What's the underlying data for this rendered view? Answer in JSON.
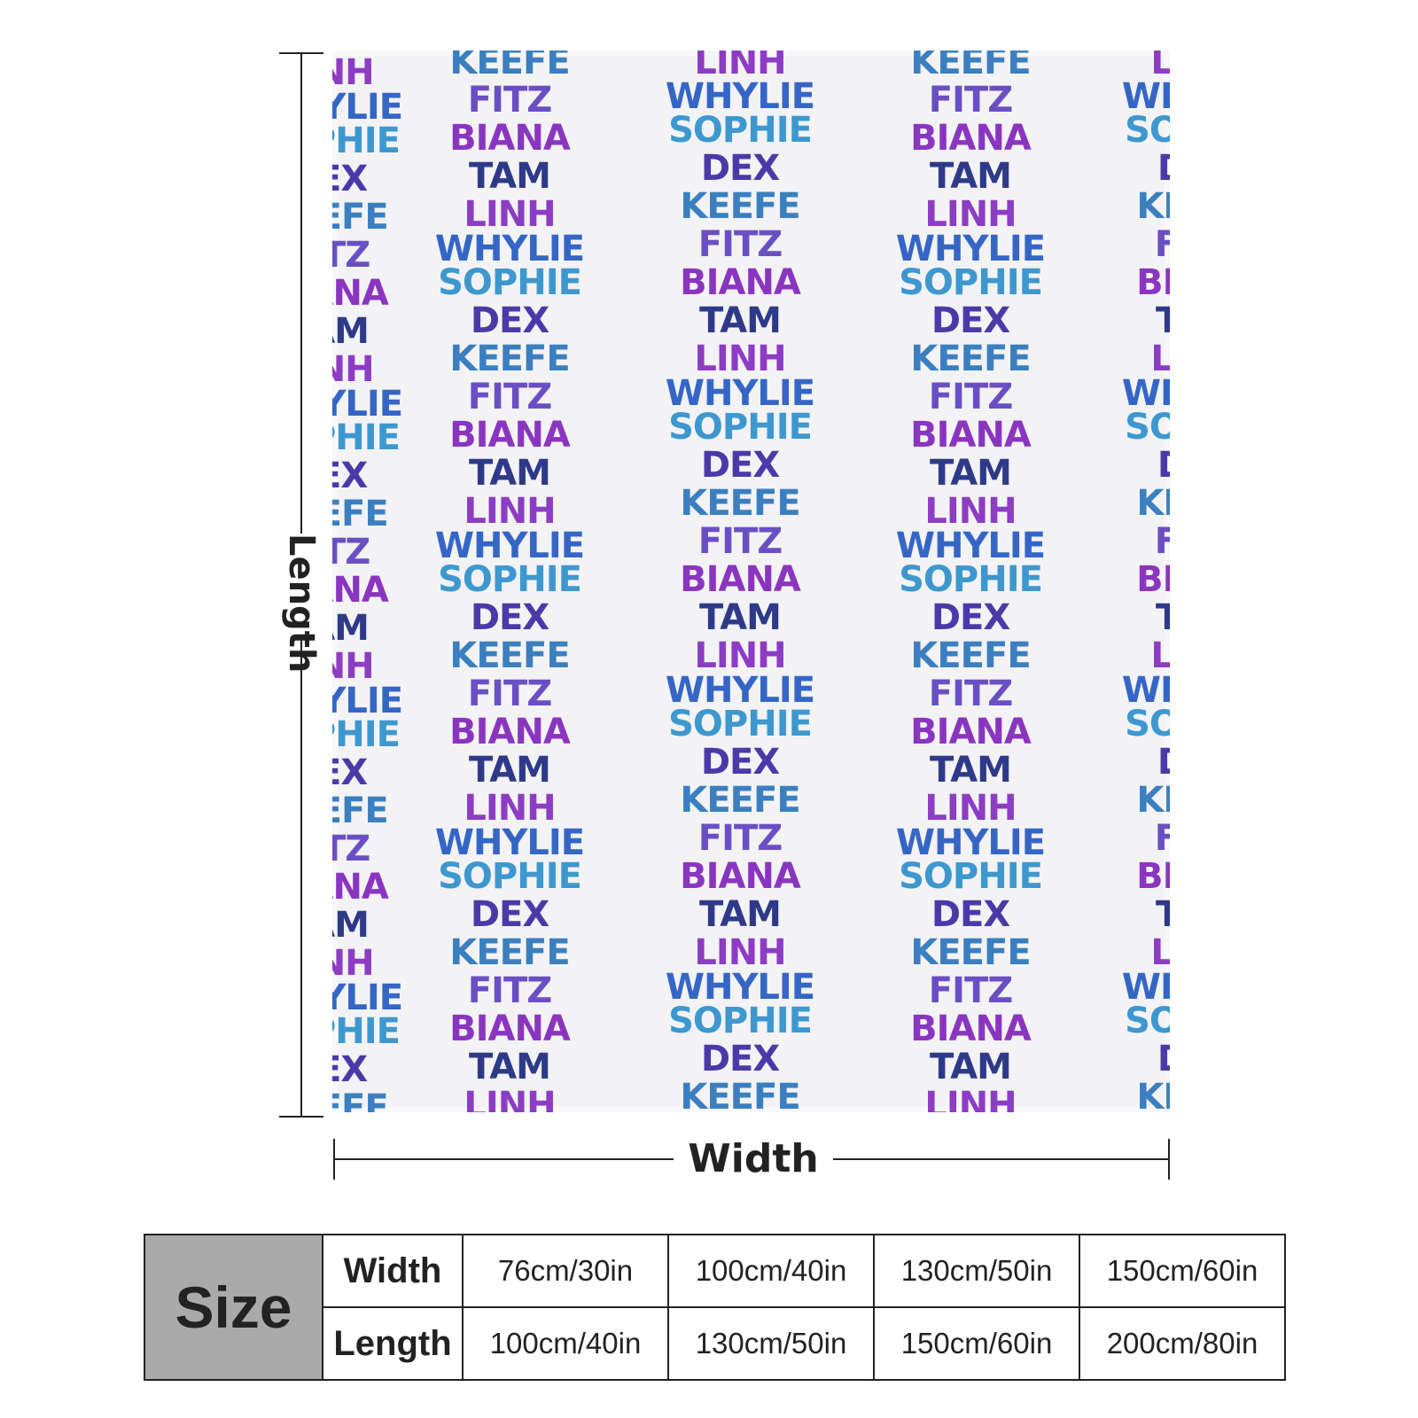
{
  "pattern_names": [
    "KEEFE",
    "FITZ",
    "BIANA",
    "TAM",
    "LINH",
    "WHYLIE",
    "SOPHIE",
    "DEX"
  ],
  "name_colors": {
    "KEEFE": "#3b7fc0",
    "FITZ": "#6a4fc4",
    "BIANA": "#8a35c0",
    "TAM": "#2e3a88",
    "LINH": "#8d3cc4",
    "WHYLIE": "#3566c6",
    "SOPHIE": "#3e98cf",
    "DEX": "#4a3aa8"
  },
  "dimensions": {
    "length_label": "Length",
    "width_label": "Width"
  },
  "size_table": {
    "header": "Size",
    "rows": [
      {
        "label": "Width",
        "values": [
          "76cm/30in",
          "100cm/40in",
          "130cm/50in",
          "150cm/60in"
        ]
      },
      {
        "label": "Length",
        "values": [
          "100cm/40in",
          "130cm/50in",
          "150cm/60in",
          "200cm/80in"
        ]
      }
    ]
  }
}
